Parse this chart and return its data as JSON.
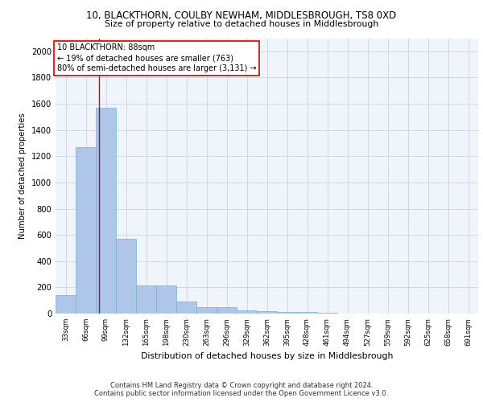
{
  "title1": "10, BLACKTHORN, COULBY NEWHAM, MIDDLESBROUGH, TS8 0XD",
  "title2": "Size of property relative to detached houses in Middlesbrough",
  "xlabel": "Distribution of detached houses by size in Middlesbrough",
  "ylabel": "Number of detached properties",
  "bin_labels": [
    "33sqm",
    "66sqm",
    "99sqm",
    "132sqm",
    "165sqm",
    "198sqm",
    "230sqm",
    "263sqm",
    "296sqm",
    "329sqm",
    "362sqm",
    "395sqm",
    "428sqm",
    "461sqm",
    "494sqm",
    "527sqm",
    "559sqm",
    "592sqm",
    "625sqm",
    "658sqm",
    "691sqm"
  ],
  "bin_edges": [
    16.5,
    49.5,
    82.5,
    115.5,
    148.5,
    181.5,
    214.5,
    247.5,
    280.5,
    313.5,
    346.5,
    379.5,
    412.5,
    445.5,
    478.5,
    511.5,
    544.5,
    577.5,
    610.5,
    643.5,
    676.5,
    709.5
  ],
  "values": [
    140,
    1270,
    1570,
    570,
    215,
    215,
    95,
    50,
    50,
    25,
    20,
    15,
    10,
    5,
    3,
    2,
    2,
    1,
    1,
    1,
    1
  ],
  "bar_color": "#aec6e8",
  "bar_edge_color": "#7bafd4",
  "grid_color": "#d0d8e8",
  "red_line_x": 88,
  "annotation_title": "10 BLACKTHORN: 88sqm",
  "annotation_line1": "← 19% of detached houses are smaller (763)",
  "annotation_line2": "80% of semi-detached houses are larger (3,131) →",
  "annotation_box_color": "#ffffff",
  "annotation_box_edge": "#cc0000",
  "red_line_color": "#cc0000",
  "ylim": [
    0,
    2100
  ],
  "yticks": [
    0,
    200,
    400,
    600,
    800,
    1000,
    1200,
    1400,
    1600,
    1800,
    2000
  ],
  "footer1": "Contains HM Land Registry data © Crown copyright and database right 2024.",
  "footer2": "Contains public sector information licensed under the Open Government Licence v3.0.",
  "bg_color": "#f0f4fb"
}
